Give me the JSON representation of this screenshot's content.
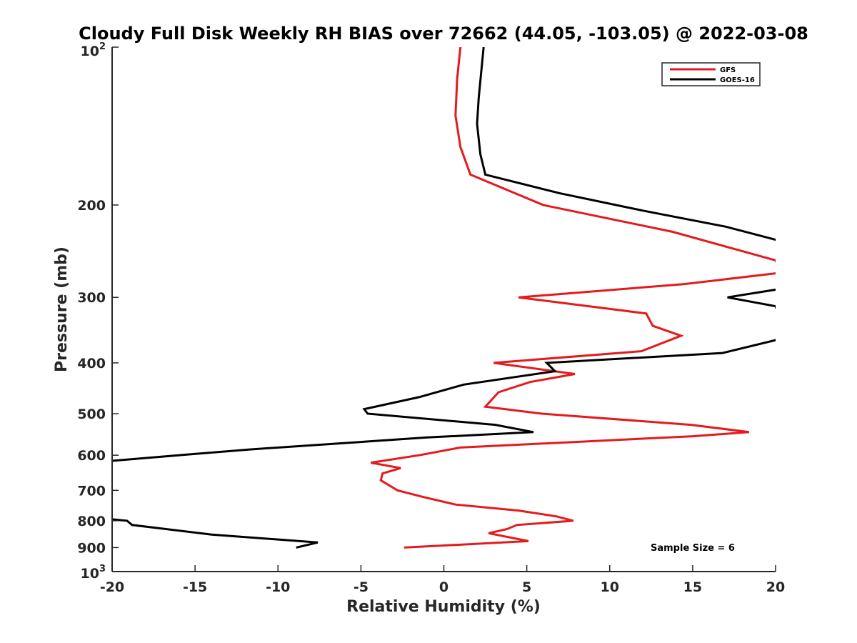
{
  "chart_data": {
    "type": "line",
    "title": "Cloudy Full Disk Weekly RH BIAS over 72662 (44.05, -103.05) @ 2022-03-08",
    "xlabel": "Relative Humidity (%)",
    "ylabel": "Pressure (mb)",
    "xlim": [
      -20,
      20
    ],
    "ylim": [
      100,
      1000
    ],
    "y_scale": "log",
    "y_reversed": true,
    "grid": false,
    "legend_position": "top-right",
    "x_ticks": [
      -20,
      -15,
      -10,
      -5,
      0,
      5,
      10,
      15,
      20
    ],
    "y_ticks": [
      {
        "value": 100,
        "label": "10",
        "sup": "2"
      },
      {
        "value": 200,
        "label": "200"
      },
      {
        "value": 300,
        "label": "300"
      },
      {
        "value": 400,
        "label": "400"
      },
      {
        "value": 500,
        "label": "500"
      },
      {
        "value": 600,
        "label": "600"
      },
      {
        "value": 700,
        "label": "700"
      },
      {
        "value": 800,
        "label": "800"
      },
      {
        "value": 900,
        "label": "900"
      },
      {
        "value": 1000,
        "label": "10",
        "sup": "3"
      }
    ],
    "series": [
      {
        "name": "GFS",
        "color": "#e41a1c",
        "points": [
          [
            1.0,
            100
          ],
          [
            0.8,
            115
          ],
          [
            0.7,
            135
          ],
          [
            1.0,
            155
          ],
          [
            1.6,
            175
          ],
          [
            6.0,
            200
          ],
          [
            13.8,
            225
          ],
          [
            18.0,
            245
          ],
          [
            20.0,
            255
          ],
          [
            20.3,
            268
          ],
          [
            20.0,
            270
          ],
          [
            14.5,
            283
          ],
          [
            4.5,
            300
          ],
          [
            12.2,
            322
          ],
          [
            12.6,
            340
          ],
          [
            14.3,
            355
          ],
          [
            11.9,
            380
          ],
          [
            3.0,
            400
          ],
          [
            7.9,
            420
          ],
          [
            5.2,
            435
          ],
          [
            3.3,
            455
          ],
          [
            2.5,
            485
          ],
          [
            5.9,
            500
          ],
          [
            14.9,
            525
          ],
          [
            18.4,
            542
          ],
          [
            15.0,
            552
          ],
          [
            1.0,
            580
          ],
          [
            -1.5,
            600
          ],
          [
            -4.4,
            620
          ],
          [
            -2.6,
            635
          ],
          [
            -3.7,
            650
          ],
          [
            -3.8,
            670
          ],
          [
            -2.8,
            700
          ],
          [
            -1.3,
            720
          ],
          [
            0.7,
            745
          ],
          [
            4.5,
            765
          ],
          [
            6.8,
            785
          ],
          [
            7.8,
            800
          ],
          [
            4.4,
            815
          ],
          [
            3.8,
            830
          ],
          [
            2.7,
            845
          ],
          [
            5.1,
            875
          ],
          [
            -2.4,
            900
          ]
        ]
      },
      {
        "name": "GOES-16",
        "color": "#000000",
        "points": [
          [
            2.4,
            100
          ],
          [
            2.1,
            125
          ],
          [
            2.0,
            140
          ],
          [
            2.2,
            160
          ],
          [
            2.5,
            175
          ],
          [
            7.0,
            190
          ],
          [
            12.0,
            205
          ],
          [
            17.0,
            220
          ],
          [
            20.0,
            233
          ],
          [
            20.5,
            240
          ],
          [
            20.3,
            289
          ],
          [
            17.1,
            300
          ],
          [
            20.0,
            312
          ],
          [
            20.5,
            345
          ],
          [
            20.0,
            362
          ],
          [
            16.8,
            383
          ],
          [
            6.2,
            400
          ],
          [
            6.7,
            415
          ],
          [
            1.2,
            440
          ],
          [
            -1.5,
            465
          ],
          [
            -4.8,
            490
          ],
          [
            -4.6,
            500
          ],
          [
            3.1,
            525
          ],
          [
            5.4,
            542
          ],
          [
            -1.0,
            555
          ],
          [
            -11.7,
            585
          ],
          [
            -16.0,
            600
          ],
          [
            -20.0,
            615
          ],
          [
            -20.5,
            620
          ],
          [
            -20.5,
            795
          ],
          [
            -20.0,
            795
          ],
          [
            -19.1,
            800
          ],
          [
            -18.8,
            815
          ],
          [
            -14.0,
            850
          ],
          [
            -7.6,
            880
          ],
          [
            -8.9,
            900
          ]
        ]
      }
    ],
    "annotations": [
      "Sample Size = 6"
    ]
  }
}
